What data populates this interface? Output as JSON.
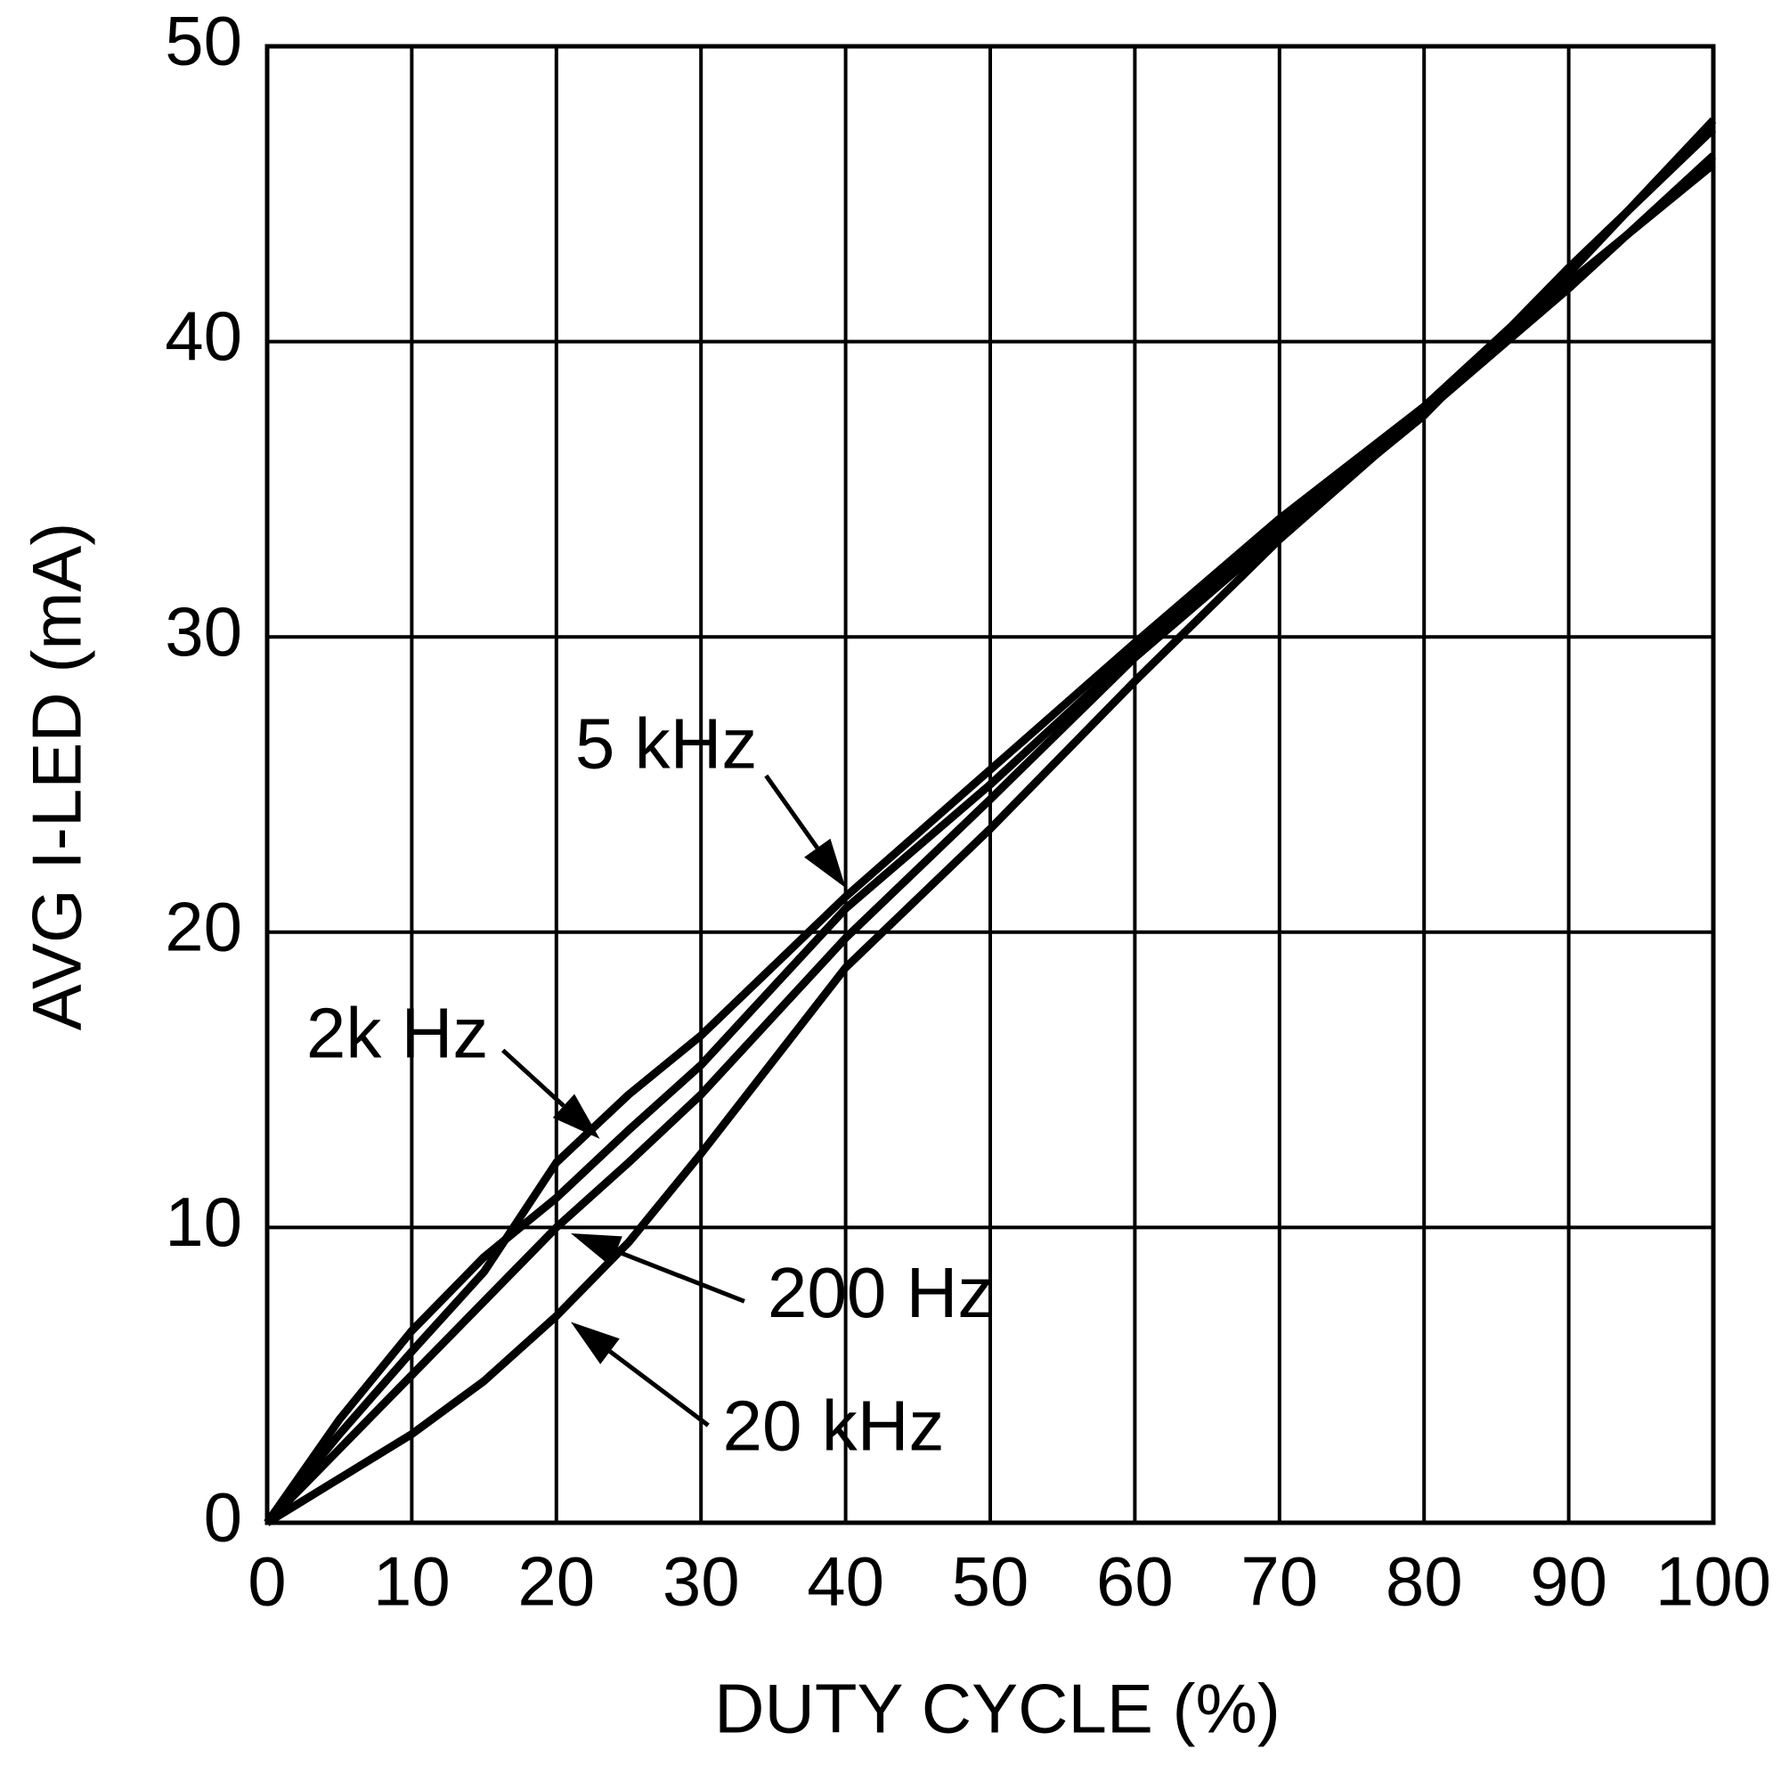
{
  "chart_data": {
    "type": "line",
    "x_label": "DUTY CYCLE (%)",
    "y_label": "AVG I-LED (mA)",
    "x": [
      0,
      5,
      10,
      15,
      20,
      25,
      30,
      40,
      50,
      60,
      70,
      80,
      90,
      100
    ],
    "series": [
      {
        "name": "5 kHz",
        "color": "#000000",
        "values": [
          0,
          3.5,
          6.5,
          9,
          11,
          13.3,
          15.5,
          20.8,
          25,
          29.5,
          33.8,
          37.8,
          42.3,
          47.5
        ]
      },
      {
        "name": "2k Hz",
        "color": "#000000",
        "values": [
          0,
          3,
          5.8,
          8.5,
          12.2,
          14.5,
          16.5,
          21.2,
          25.5,
          29.8,
          34,
          37.8,
          42,
          46
        ]
      },
      {
        "name": "200 Hz",
        "color": "#000000",
        "values": [
          0,
          2.5,
          5,
          7.5,
          10,
          12.2,
          14.5,
          19.8,
          24.5,
          29.3,
          33.5,
          37.5,
          42.5,
          47.2
        ]
      },
      {
        "name": "20 kHz",
        "color": "#000000",
        "values": [
          0,
          1.5,
          3,
          4.8,
          7,
          9.5,
          12.5,
          18.8,
          23.5,
          28.5,
          33.3,
          37.6,
          41.8,
          46.3
        ]
      }
    ],
    "xlim": [
      0,
      100
    ],
    "xticks": [
      0,
      10,
      20,
      30,
      40,
      50,
      60,
      70,
      80,
      90,
      100
    ],
    "ylim": [
      0,
      50
    ],
    "yticks": [
      0,
      10,
      20,
      30,
      40,
      50
    ],
    "grid": true
  }
}
